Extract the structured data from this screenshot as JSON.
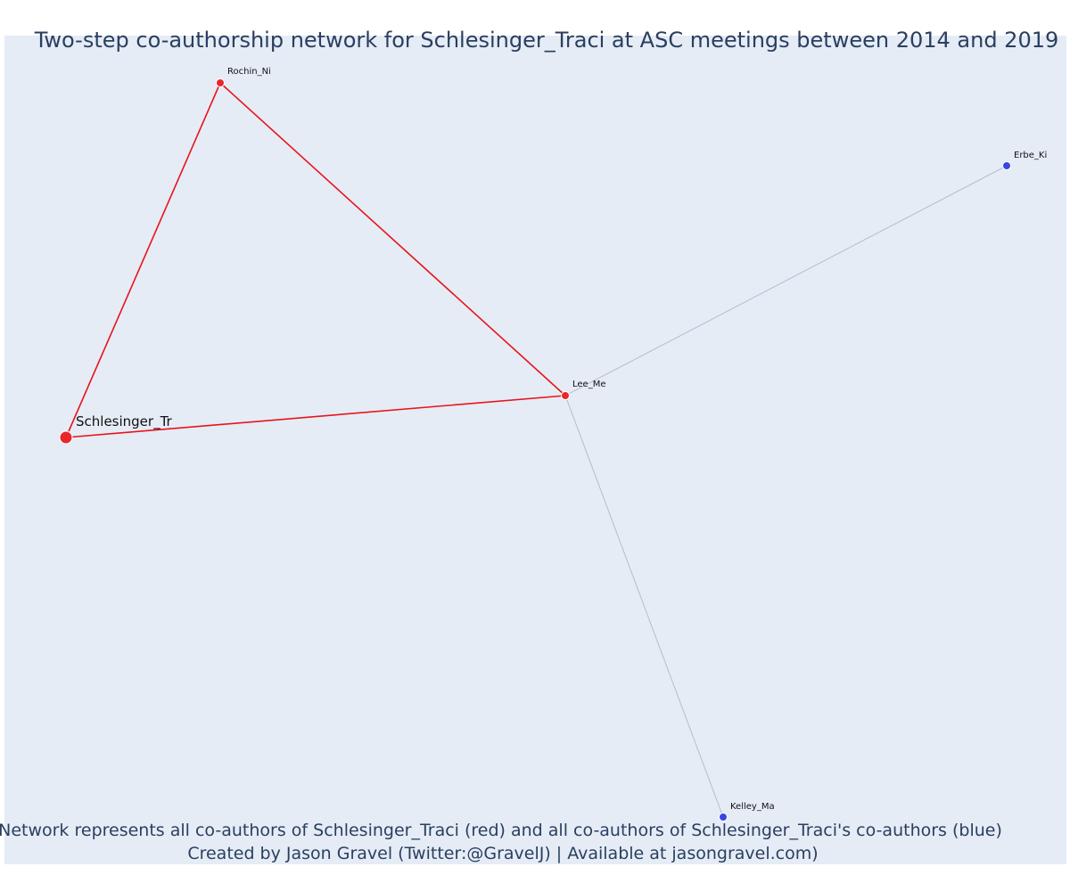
{
  "title": "Two-step co-authorship network for Schlesinger_Traci at ASC meetings between 2014 and 2019",
  "caption": {
    "line1": "Network represents all co-authors of Schlesinger_Traci (red) and all co-authors of Schlesinger_Traci's co-authors (blue)",
    "line2": "Created by Jason Gravel (Twitter:@GravelJ) | Available at jasongravel.com)"
  },
  "colors": {
    "background": "#e5ecf6",
    "text": "#2a3f5f",
    "coauthor": "#e8272b",
    "second_step": "#3b46e0",
    "direct_edge": "#e8141a",
    "indirect_edge": "#b8bccb"
  },
  "nodes": [
    {
      "id": "Schlesinger_Tr",
      "label": "Schlesinger_Tr",
      "group": "focal"
    },
    {
      "id": "Rochin_Ni",
      "label": "Rochin_Ni",
      "group": "coauthor"
    },
    {
      "id": "Lee_Me",
      "label": "Lee_Me",
      "group": "coauthor"
    },
    {
      "id": "Erbe_Ki",
      "label": "Erbe_Ki",
      "group": "second_step"
    },
    {
      "id": "Kelley_Ma",
      "label": "Kelley_Ma",
      "group": "second_step"
    }
  ],
  "edges": [
    {
      "source": "Schlesinger_Tr",
      "target": "Rochin_Ni",
      "type": "direct"
    },
    {
      "source": "Rochin_Ni",
      "target": "Lee_Me",
      "type": "direct"
    },
    {
      "source": "Schlesinger_Tr",
      "target": "Lee_Me",
      "type": "direct"
    },
    {
      "source": "Lee_Me",
      "target": "Erbe_Ki",
      "type": "indirect"
    },
    {
      "source": "Lee_Me",
      "target": "Kelley_Ma",
      "type": "indirect"
    }
  ]
}
